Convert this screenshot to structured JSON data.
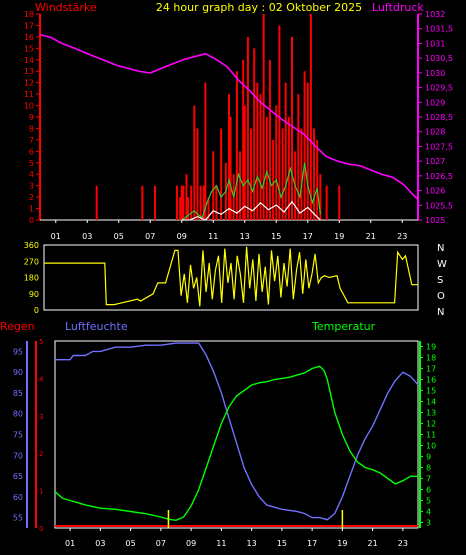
{
  "header": {
    "left_title": "Windstärke",
    "center_title": "24 hour graph day : 02 Oktober 2025",
    "right_title": "Luftdruck"
  },
  "colors": {
    "background": "#000000",
    "wind": "#ff0000",
    "gust": "#33cc33",
    "pressure": "#ff00ff",
    "direction": "#ffff00",
    "rain": "#ff0000",
    "humidity": "#7070ff",
    "temperature": "#00ff00",
    "title": "#ffff00",
    "axis_text": "#ffffff"
  },
  "hour_ticks": [
    "01",
    "03",
    "05",
    "07",
    "09",
    "11",
    "13",
    "15",
    "17",
    "19",
    "21",
    "23"
  ],
  "chart_data": [
    {
      "id": "wind_pressure",
      "type": "bar",
      "title": "24 hour graph day : 02 Oktober 2025",
      "left_axis_label": "Windstärke",
      "right_axis_label": "Luftdruck",
      "x_range": [
        0,
        24
      ],
      "ylim_left": [
        0,
        18
      ],
      "ylim_right": [
        1025,
        1032
      ],
      "y_ticks_left": [
        "0",
        "1",
        "2",
        "3",
        "4",
        "5",
        "6",
        "7",
        "8",
        "9",
        "10",
        "11",
        "12",
        "13",
        "14",
        "15",
        "16",
        "17",
        "18"
      ],
      "y_ticks_right": [
        "1025",
        "1025,5",
        "1026",
        "1026,5",
        "1027",
        "1027,5",
        "1028",
        "1028,5",
        "1029",
        "1029,5",
        "1030",
        "1030,5",
        "1031",
        "1031,5",
        "1032"
      ],
      "grid": false,
      "series": [
        {
          "kind": "bars",
          "color": "red",
          "x": [
            3.6,
            6.5,
            7.3,
            8.7,
            8.9,
            9.0,
            9.1,
            9.3,
            9.4,
            9.6,
            9.8,
            10.0,
            10.2,
            10.4,
            10.5,
            10.7,
            11.0,
            11.2,
            11.5,
            11.8,
            12.0,
            12.1,
            12.3,
            12.5,
            12.7,
            12.9,
            13.0,
            13.2,
            13.4,
            13.6,
            13.8,
            14.0,
            14.2,
            14.4,
            14.6,
            14.8,
            15.0,
            15.2,
            15.4,
            15.6,
            15.8,
            16.0,
            16.2,
            16.4,
            16.6,
            16.8,
            17.0,
            17.2,
            17.4,
            17.6,
            17.8,
            18.2,
            19.0
          ],
          "y": [
            3,
            3,
            3,
            3,
            2,
            3,
            3,
            4,
            2,
            3,
            10,
            8,
            3,
            3,
            12,
            2,
            6,
            3,
            8,
            5,
            11,
            9,
            4,
            13,
            6,
            14,
            10,
            16,
            8,
            15,
            12,
            11,
            18,
            9,
            14,
            7,
            10,
            17,
            8,
            12,
            9,
            16,
            6,
            11,
            8,
            13,
            12,
            18,
            8,
            7,
            4,
            3,
            3
          ]
        },
        {
          "kind": "line",
          "color": "green",
          "x": [
            9.0,
            9.3,
            9.5,
            9.8,
            10.0,
            10.3,
            10.6,
            10.9,
            11.2,
            11.5,
            11.8,
            12.0,
            12.3,
            12.6,
            12.9,
            13.2,
            13.5,
            13.8,
            14.1,
            14.4,
            14.7,
            15.0,
            15.3,
            15.6,
            15.9,
            16.2,
            16.5,
            16.8,
            17.0,
            17.3,
            17.6,
            17.8
          ],
          "y": [
            0,
            0.3,
            0.5,
            0.8,
            0.5,
            0.2,
            1.5,
            2.5,
            3,
            2,
            2.5,
            3.5,
            2,
            4,
            3,
            3.5,
            2.5,
            3.8,
            2.8,
            4.2,
            3,
            3.5,
            2,
            3,
            4.5,
            3,
            2,
            5,
            3,
            1.5,
            2.8,
            0.5
          ]
        },
        {
          "kind": "line",
          "color": "white",
          "x": [
            9.0,
            9.5,
            10.0,
            10.5,
            11.0,
            11.5,
            12.0,
            12.5,
            13.0,
            13.5,
            14.0,
            14.5,
            15.0,
            15.5,
            16.0,
            16.5,
            17.0,
            17.5,
            17.8
          ],
          "y": [
            0,
            0,
            0.3,
            0,
            0.8,
            0.5,
            1,
            0.6,
            1.2,
            0.8,
            1.5,
            0.9,
            1.3,
            0.7,
            1.6,
            0.6,
            1.1,
            0.4,
            0
          ]
        },
        {
          "kind": "line",
          "axis": "right",
          "color": "magenta",
          "x": [
            0,
            0.7,
            1.4,
            2.1,
            2.8,
            3.5,
            4.2,
            4.9,
            5.6,
            6.3,
            7.0,
            7.7,
            8.4,
            9.1,
            9.8,
            10.5,
            11.2,
            11.9,
            12.6,
            13.3,
            14.0,
            14.7,
            15.4,
            16.1,
            16.8,
            17.5,
            18.2,
            18.9,
            19.6,
            20.3,
            21.0,
            21.7,
            22.4,
            23.1,
            23.8,
            24.0
          ],
          "y": [
            1031.3,
            1031.2,
            1031.0,
            1030.85,
            1030.7,
            1030.55,
            1030.4,
            1030.25,
            1030.15,
            1030.05,
            1030.0,
            1030.15,
            1030.3,
            1030.45,
            1030.55,
            1030.65,
            1030.45,
            1030.2,
            1029.75,
            1029.4,
            1029.0,
            1028.7,
            1028.4,
            1028.15,
            1027.9,
            1027.5,
            1027.15,
            1027.0,
            1026.9,
            1026.85,
            1026.7,
            1026.55,
            1026.45,
            1026.2,
            1025.8,
            1025.7
          ]
        }
      ]
    },
    {
      "id": "wind_direction",
      "type": "line",
      "x_range": [
        0,
        24
      ],
      "ylim": [
        0,
        360
      ],
      "y_ticks": [
        "0",
        "90",
        "180",
        "270",
        "360"
      ],
      "compass_labels": [
        "N",
        "W",
        "S",
        "O",
        "N"
      ],
      "series": [
        {
          "color": "yellow",
          "x": [
            0,
            3.9,
            4.0,
            4.5,
            5.0,
            6.0,
            6.2,
            7.0,
            7.3,
            7.8,
            8.4,
            8.6,
            8.8,
            9.0,
            9.2,
            9.4,
            9.6,
            9.8,
            10.0,
            10.2,
            10.4,
            10.6,
            10.8,
            11.0,
            11.2,
            11.4,
            11.6,
            11.8,
            12.0,
            12.2,
            12.4,
            12.6,
            12.8,
            13.0,
            13.2,
            13.4,
            13.6,
            13.8,
            14.0,
            14.2,
            14.4,
            14.6,
            14.8,
            15.0,
            15.2,
            15.4,
            15.6,
            15.8,
            16.0,
            16.2,
            16.4,
            16.6,
            16.8,
            17.0,
            17.2,
            17.4,
            17.6,
            17.8,
            18.0,
            18.3,
            18.8,
            19.0,
            19.5,
            20.0,
            22.0,
            22.5,
            22.7,
            23.0,
            23.2,
            23.6,
            24.0
          ],
          "y": [
            260,
            260,
            30,
            30,
            40,
            60,
            50,
            90,
            150,
            150,
            330,
            330,
            80,
            200,
            40,
            250,
            120,
            180,
            20,
            330,
            100,
            260,
            60,
            220,
            300,
            40,
            340,
            150,
            260,
            60,
            300,
            200,
            40,
            350,
            120,
            280,
            50,
            310,
            100,
            240,
            30,
            330,
            160,
            300,
            70,
            260,
            130,
            340,
            60,
            220,
            320,
            90,
            280,
            120,
            200,
            310,
            150,
            180,
            190,
            180,
            190,
            120,
            40,
            40,
            40,
            40,
            320,
            280,
            300,
            140,
            140
          ]
        }
      ]
    },
    {
      "id": "humidity_temperature",
      "type": "line",
      "left_axis_label": "Regen",
      "mid_axis_label": "Luftfeuchte",
      "right_axis_label": "Temperatur",
      "x_range": [
        0,
        24
      ],
      "ylim_humidity": [
        52.5,
        97.5
      ],
      "ylim_temperature": [
        2.5,
        19.5
      ],
      "y_ticks_rain": [
        "5",
        "4",
        "3",
        "2",
        "1",
        "0"
      ],
      "y_ticks_humidity": [
        "55",
        "60",
        "65",
        "70",
        "75",
        "80",
        "85",
        "90",
        "95"
      ],
      "y_ticks_temperature": [
        "3",
        "4",
        "5",
        "6",
        "7",
        "8",
        "9",
        "10",
        "11",
        "12",
        "13",
        "14",
        "15",
        "16",
        "17",
        "18",
        "19"
      ],
      "series": [
        {
          "name": "Luftfeuchte",
          "color": "blue",
          "x": [
            0,
            1.0,
            1.2,
            2.0,
            2.5,
            3.0,
            3.5,
            4.0,
            5.0,
            6.0,
            7.0,
            8.0,
            8.5,
            9.5,
            10.0,
            10.5,
            11.0,
            11.5,
            12.0,
            12.5,
            13.0,
            13.5,
            14.0,
            15.0,
            16.0,
            16.5,
            17.0,
            17.5,
            18.0,
            18.5,
            19.0,
            19.5,
            20.0,
            20.5,
            21.0,
            21.5,
            22.0,
            22.5,
            23.0,
            23.5,
            24.0
          ],
          "y": [
            93,
            93,
            94,
            94,
            95,
            95,
            95.5,
            96,
            96,
            96.5,
            96.5,
            97,
            97,
            97,
            94,
            90,
            85,
            79,
            73,
            67,
            63,
            60,
            58,
            57,
            56.5,
            56,
            55,
            55,
            54.5,
            56,
            60,
            65,
            70,
            74,
            77,
            81,
            85,
            88,
            90,
            89,
            87
          ]
        },
        {
          "name": "Temperatur",
          "color": "green",
          "x": [
            0,
            0.5,
            1.0,
            1.5,
            2.0,
            3.0,
            4.0,
            5.0,
            6.0,
            7.0,
            7.5,
            8.0,
            8.5,
            9.0,
            9.5,
            10.0,
            10.5,
            11.0,
            11.5,
            12.0,
            12.5,
            13.0,
            13.5,
            14.0,
            14.5,
            15.0,
            15.5,
            16.0,
            16.5,
            17.0,
            17.5,
            17.8,
            18.0,
            18.5,
            19.0,
            19.5,
            20.0,
            20.5,
            21.0,
            21.5,
            22.0,
            22.5,
            23.0,
            23.5,
            24.0
          ],
          "y": [
            5.8,
            5.2,
            5.0,
            4.8,
            4.6,
            4.3,
            4.2,
            4.0,
            3.8,
            3.5,
            3.3,
            3.2,
            3.5,
            4.5,
            6,
            8,
            10,
            12,
            13.5,
            14.5,
            15,
            15.5,
            15.7,
            15.8,
            16,
            16.1,
            16.2,
            16.4,
            16.6,
            17,
            17.2,
            16.8,
            16,
            13,
            11,
            9.5,
            8.5,
            8,
            7.8,
            7.5,
            7,
            6.5,
            6.8,
            7.2,
            7.2
          ]
        },
        {
          "name": "Regen",
          "color": "red",
          "x": [
            0,
            24
          ],
          "y": [
            0,
            0
          ]
        }
      ],
      "yellow_markers": [
        7.5,
        19.0
      ]
    }
  ]
}
